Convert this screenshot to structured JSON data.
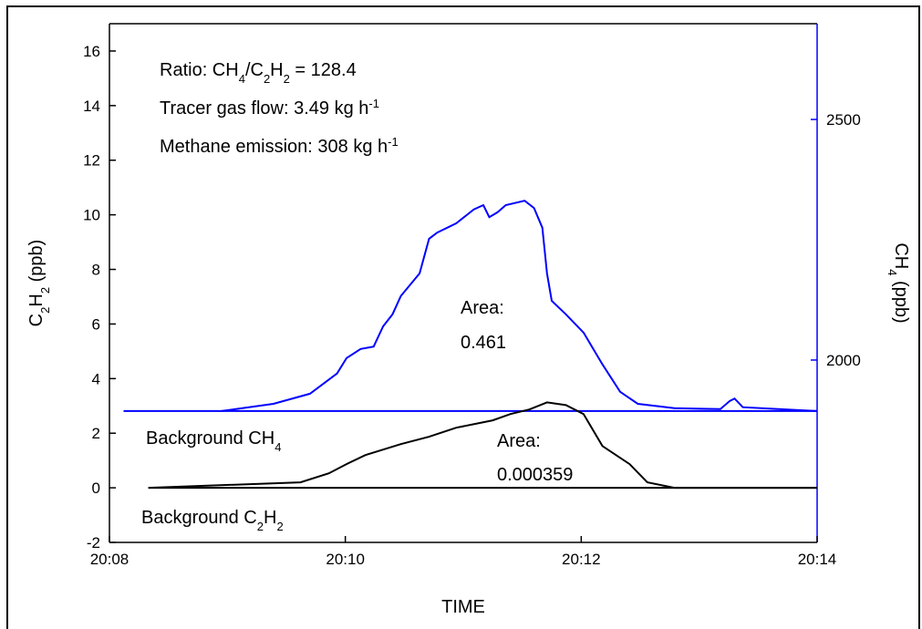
{
  "chart_data": {
    "type": "line",
    "xlabel": {
      "parts": [
        {
          "text": "TIME"
        }
      ]
    },
    "ylabel": {
      "parts": [
        {
          "text": "C"
        },
        {
          "text": "2",
          "script": "sub"
        },
        {
          "text": "H"
        },
        {
          "text": "2",
          "script": "sub"
        },
        {
          "text": " (ppb)"
        }
      ]
    },
    "y2label": {
      "parts": [
        {
          "text": "CH"
        },
        {
          "text": "4",
          "script": "sub"
        },
        {
          "text": " (ppb)"
        }
      ],
      "color": "#0000ff"
    },
    "xlim": [
      1208,
      1214
    ],
    "xticks": [
      {
        "value": 1208,
        "label": "20:08"
      },
      {
        "value": 1210,
        "label": "20:10"
      },
      {
        "value": 1212,
        "label": "20:12"
      },
      {
        "value": 1214,
        "label": "20:14"
      }
    ],
    "ylim": [
      -2,
      17
    ],
    "yticks": [
      -2,
      0,
      2,
      4,
      6,
      8,
      10,
      12,
      14,
      16
    ],
    "y2lim": [
      1621,
      2699
    ],
    "y2ticks": [
      2000,
      2500
    ],
    "y2color": "#0000ff",
    "series": [
      {
        "color": "#0000ff",
        "axis": "y2",
        "x": [
          1208.95,
          1209.39,
          1209.7,
          1209.93,
          1210.01,
          1210.13,
          1210.24,
          1210.32,
          1210.4,
          1210.47,
          1210.63,
          1210.71,
          1210.78,
          1210.94,
          1211.09,
          1211.17,
          1211.22,
          1211.29,
          1211.36,
          1211.52,
          1211.6,
          1211.67,
          1211.71,
          1211.75,
          1211.87,
          1212.02,
          1212.18,
          1212.33,
          1212.48,
          1212.79,
          1213.18,
          1213.26,
          1213.3,
          1213.37,
          1214.0
        ],
        "values": [
          1894,
          1909,
          1930,
          1972,
          2004,
          2023,
          2028,
          2070,
          2095,
          2133,
          2180,
          2252,
          2265,
          2284,
          2313,
          2322,
          2297,
          2307,
          2322,
          2331,
          2316,
          2275,
          2180,
          2123,
          2095,
          2057,
          1991,
          1934,
          1909,
          1900,
          1898,
          1915,
          1920,
          1902,
          1894
        ]
      },
      {
        "color": "#0000ff",
        "axis": "y2",
        "x": [
          1208.12,
          1214.0
        ],
        "values": [
          1894,
          1894
        ]
      },
      {
        "color": "#000000",
        "x": [
          1208.33,
          1209.62,
          1209.86,
          1210.01,
          1210.17,
          1210.47,
          1210.71,
          1210.94,
          1211.25,
          1211.4,
          1211.56,
          1211.71,
          1211.87,
          1212.02,
          1212.18,
          1212.41,
          1212.56,
          1212.79,
          1214.0
        ],
        "values": [
          0,
          0.2,
          0.53,
          0.87,
          1.2,
          1.6,
          1.87,
          2.2,
          2.47,
          2.7,
          2.87,
          3.13,
          3.03,
          2.7,
          1.53,
          0.87,
          0.2,
          0,
          0
        ]
      },
      {
        "color": "#000000",
        "x": [
          1208.33,
          1214.0
        ],
        "values": [
          0,
          0
        ]
      }
    ],
    "annotations": [
      {
        "parts": [
          {
            "text": "Ratio: CH"
          },
          {
            "text": "4",
            "script": "sub"
          },
          {
            "text": "/C"
          },
          {
            "text": "2",
            "script": "sub"
          },
          {
            "text": "H"
          },
          {
            "text": "2",
            "script": "sub"
          },
          {
            "text": " = 128.4"
          }
        ]
      },
      {
        "parts": [
          {
            "text": "Tracer gas flow: 3.49 kg h"
          },
          {
            "text": "-1",
            "script": "super"
          }
        ]
      },
      {
        "parts": [
          {
            "text": "Methane emission: 308 kg h"
          },
          {
            "text": "-1",
            "script": "super"
          }
        ]
      },
      {
        "parts": [
          {
            "text": "Area:"
          }
        ]
      },
      {
        "parts": [
          {
            "text": "0.461"
          }
        ]
      },
      {
        "parts": [
          {
            "text": "Area:"
          }
        ]
      },
      {
        "parts": [
          {
            "text": "0.000359"
          }
        ]
      },
      {
        "parts": [
          {
            "text": "Background CH"
          },
          {
            "text": "4",
            "script": "sub"
          }
        ]
      },
      {
        "parts": [
          {
            "text": "Background C"
          },
          {
            "text": "2",
            "script": "sub"
          },
          {
            "text": "H"
          },
          {
            "text": "2",
            "script": "sub"
          }
        ]
      }
    ]
  }
}
